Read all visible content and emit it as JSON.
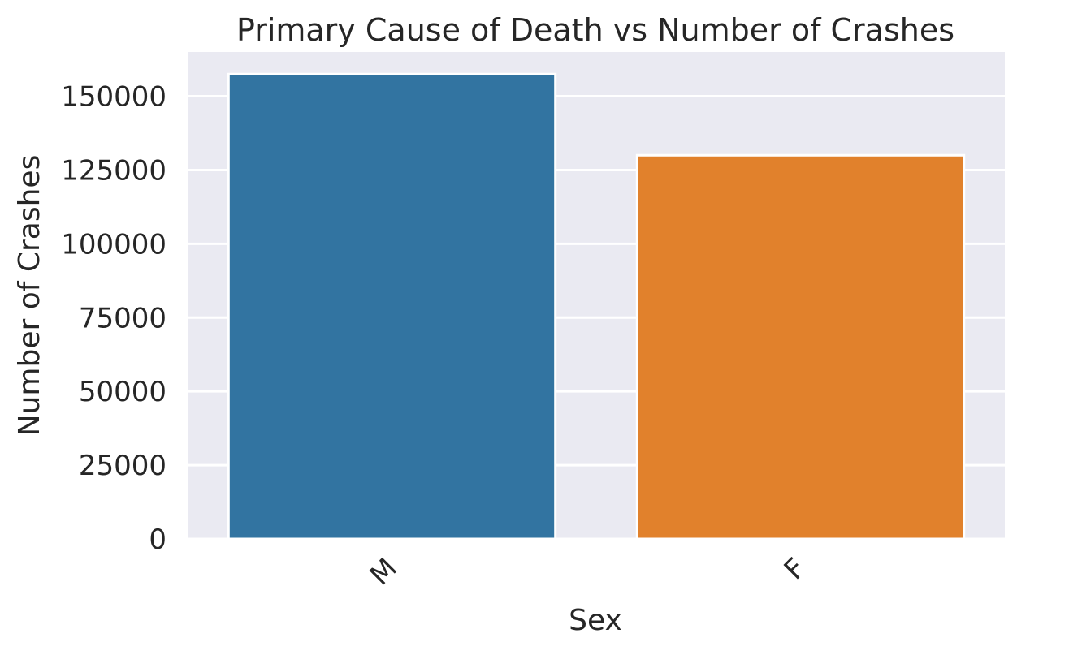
{
  "chart_data": {
    "type": "bar",
    "title": "Primary Cause of Death vs Number of Crashes",
    "xlabel": "Sex",
    "ylabel": "Number of Crashes",
    "categories": [
      "M",
      "F"
    ],
    "values": [
      157500,
      130000
    ],
    "yticks": [
      0,
      25000,
      50000,
      75000,
      100000,
      125000,
      150000
    ],
    "ytick_labels": [
      "0",
      "25000",
      "50000",
      "75000",
      "100000",
      "125000",
      "150000"
    ],
    "ylim": [
      0,
      165000
    ],
    "grid": true,
    "colors": [
      "#3274a1",
      "#e1812c"
    ],
    "background_color": "#eaeaf2"
  }
}
